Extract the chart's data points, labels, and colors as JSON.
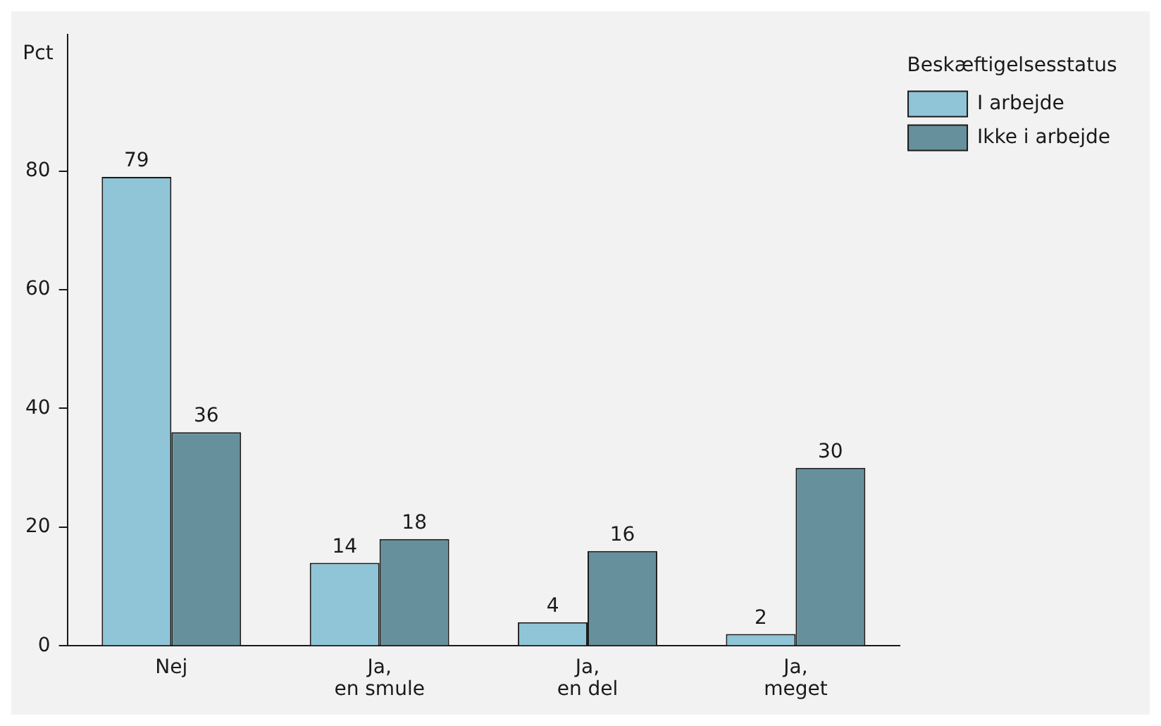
{
  "chart_data": {
    "type": "bar",
    "ylabel": "Pct",
    "legend_title": "Beskæftigelsesstatus",
    "categories": [
      "Nej",
      "Ja,\nen smule",
      "Ja,\nen del",
      "Ja,\nmeget"
    ],
    "series": [
      {
        "name": "I arbejde",
        "color": "#8fc5d6",
        "values": [
          79,
          14,
          4,
          2
        ]
      },
      {
        "name": "Ikke i arbejde",
        "color": "#66909c",
        "values": [
          36,
          18,
          16,
          30
        ]
      }
    ],
    "ylim": [
      0,
      103
    ],
    "yticks": [
      0,
      20,
      40,
      60,
      80
    ],
    "grid": false,
    "legend": "top right",
    "data_labels": true
  }
}
